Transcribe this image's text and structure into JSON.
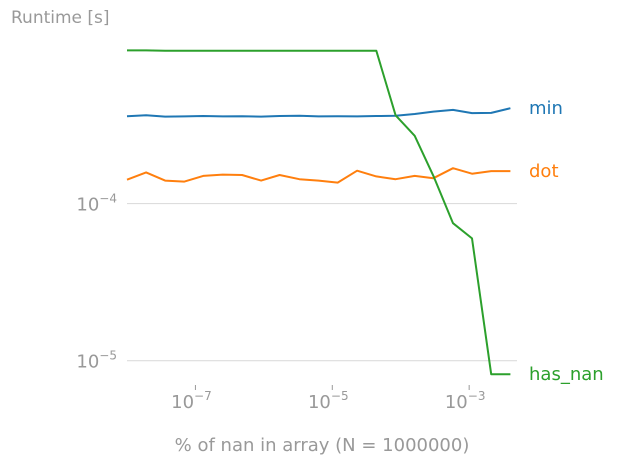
{
  "chart_data": {
    "type": "line",
    "title": "",
    "ylabel": "Runtime [s]",
    "xlabel": "% of nan in array (N = 1000000)",
    "xscale": "log",
    "yscale": "log",
    "xlim": [
      1e-08,
      0.005
    ],
    "ylim": [
      7e-06,
      0.0011
    ],
    "grid": "horizontal at major y ticks",
    "legend": "inline labels at right end of each line",
    "x_ticks": [
      {
        "base": "10",
        "exp": "−7",
        "value": 1e-07
      },
      {
        "base": "10",
        "exp": "−5",
        "value": 1e-05
      },
      {
        "base": "10",
        "exp": "−3",
        "value": 0.001
      }
    ],
    "y_ticks": [
      {
        "base": "10",
        "exp": "−4",
        "value": 0.0001
      },
      {
        "base": "10",
        "exp": "−5",
        "value": 1e-05
      }
    ],
    "x": [
      1e-08,
      1.9e-08,
      3.6e-08,
      6.9e-08,
      1.3e-07,
      2.5e-07,
      4.8e-07,
      9.1e-07,
      1.7e-06,
      3.3e-06,
      6.3e-06,
      1.2e-05,
      2.3e-05,
      4.4e-05,
      8.4e-05,
      0.00016,
      0.0003,
      0.00058,
      0.0011,
      0.0021,
      0.004
    ],
    "series": [
      {
        "name": "min",
        "color": "#1f77b4",
        "values": [
          0.00036,
          0.000365,
          0.000358,
          0.000359,
          0.000361,
          0.000359,
          0.00036,
          0.000358,
          0.000361,
          0.000362,
          0.000359,
          0.00036,
          0.000359,
          0.000361,
          0.000362,
          0.000372,
          0.000385,
          0.000395,
          0.000377,
          0.000378,
          0.000405
        ]
      },
      {
        "name": "dot",
        "color": "#ff7f0e",
        "values": [
          0.000142,
          0.000158,
          0.00014,
          0.000138,
          0.00015,
          0.000153,
          0.000152,
          0.00014,
          0.000152,
          0.000143,
          0.00014,
          0.000136,
          0.000162,
          0.000149,
          0.000143,
          0.00015,
          0.000145,
          0.000168,
          0.000155,
          0.000161,
          0.000161
        ]
      },
      {
        "name": "has_nan",
        "color": "#2ca02c",
        "values": [
          0.000945,
          0.000945,
          0.00094,
          0.00094,
          0.00094,
          0.00094,
          0.00094,
          0.00094,
          0.00094,
          0.00094,
          0.00094,
          0.00094,
          0.00094,
          0.00094,
          0.000365,
          0.00027,
          0.00015,
          7.5e-05,
          6e-05,
          8.2e-06,
          8.2e-06
        ]
      }
    ]
  }
}
